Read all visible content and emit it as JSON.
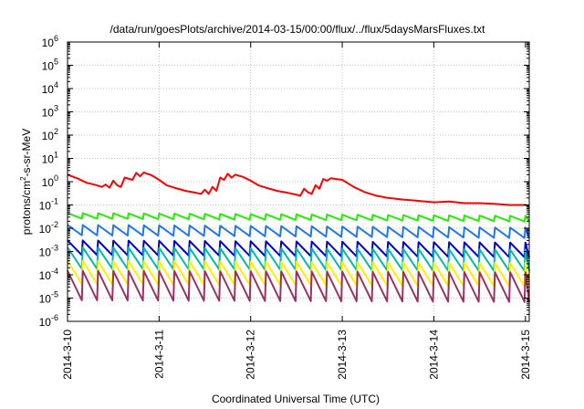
{
  "chart_data": {
    "type": "line",
    "title": "/data/run/goesPlots/archive/2014-03-15/00:00/flux/../flux/5daysMarsFluxes.txt",
    "xlabel": "Coordinated Universal Time (UTC)",
    "ylabel": {
      "prefix": "protons/cm",
      "sup": "2",
      "suffix": "-s-sr-MeV"
    },
    "x_ticks": [
      "2014-3-10",
      "2014-3-11",
      "2014-3-12",
      "2014-3-13",
      "2014-3-14",
      "2014-3-15"
    ],
    "xlim": [
      "2014-03-10 00:00",
      "2014-03-15 01:00"
    ],
    "yscale": "log",
    "ylim": [
      1e-06,
      1000000.0
    ],
    "y_ticks": [
      {
        "base": "10",
        "exp": "-6"
      },
      {
        "base": "10",
        "exp": "-5"
      },
      {
        "base": "10",
        "exp": "-4"
      },
      {
        "base": "10",
        "exp": "-3"
      },
      {
        "base": "10",
        "exp": "-2"
      },
      {
        "base": "10",
        "exp": "-1"
      },
      {
        "base": "10",
        "exp": "0"
      },
      {
        "base": "10",
        "exp": "1"
      },
      {
        "base": "10",
        "exp": "2"
      },
      {
        "base": "10",
        "exp": "3"
      },
      {
        "base": "10",
        "exp": "4"
      },
      {
        "base": "10",
        "exp": "5"
      },
      {
        "base": "10",
        "exp": "6"
      }
    ],
    "grid": true,
    "series": [
      {
        "color": "#ff0000",
        "points": [
          [
            "2014-03-10 00:00",
            2.0
          ],
          [
            "2014-03-10 03:00",
            1.3
          ],
          [
            "2014-03-10 05:00",
            0.9
          ],
          [
            "2014-03-10 07:00",
            0.75
          ],
          [
            "2014-03-10 09:00",
            0.6
          ],
          [
            "2014-03-10 10:00",
            0.75
          ],
          [
            "2014-03-10 11:00",
            0.55
          ],
          [
            "2014-03-10 12:00",
            1.1
          ],
          [
            "2014-03-10 13:00",
            0.7
          ],
          [
            "2014-03-10 14:00",
            0.6
          ],
          [
            "2014-03-10 15:00",
            1.5
          ],
          [
            "2014-03-10 17:00",
            1.2
          ],
          [
            "2014-03-10 18:00",
            2.4
          ],
          [
            "2014-03-10 19:00",
            1.7
          ],
          [
            "2014-03-10 20:00",
            2.5
          ],
          [
            "2014-03-10 22:00",
            1.9
          ],
          [
            "2014-03-11 00:00",
            1.2
          ],
          [
            "2014-03-11 02:00",
            0.7
          ],
          [
            "2014-03-11 04:00",
            0.55
          ],
          [
            "2014-03-11 07:00",
            0.4
          ],
          [
            "2014-03-11 09:00",
            0.35
          ],
          [
            "2014-03-11 11:00",
            0.3
          ],
          [
            "2014-03-11 12:00",
            0.45
          ],
          [
            "2014-03-11 13:00",
            0.3
          ],
          [
            "2014-03-11 14:00",
            0.6
          ],
          [
            "2014-03-11 15:00",
            0.4
          ],
          [
            "2014-03-11 16:00",
            1.5
          ],
          [
            "2014-03-11 17:00",
            1.2
          ],
          [
            "2014-03-11 18:00",
            2.2
          ],
          [
            "2014-03-11 19:00",
            1.5
          ],
          [
            "2014-03-11 20:00",
            2.0
          ],
          [
            "2014-03-11 22:00",
            1.6
          ],
          [
            "2014-03-12 00:00",
            1.1
          ],
          [
            "2014-03-12 02:00",
            0.7
          ],
          [
            "2014-03-12 04:00",
            0.55
          ],
          [
            "2014-03-12 07:00",
            0.4
          ],
          [
            "2014-03-12 09:00",
            0.35
          ],
          [
            "2014-03-12 11:00",
            0.3
          ],
          [
            "2014-03-12 13:00",
            0.25
          ],
          [
            "2014-03-12 14:00",
            0.5
          ],
          [
            "2014-03-12 15:00",
            0.35
          ],
          [
            "2014-03-12 16:00",
            0.3
          ],
          [
            "2014-03-12 17:00",
            0.7
          ],
          [
            "2014-03-12 18:00",
            0.5
          ],
          [
            "2014-03-12 19:00",
            1.3
          ],
          [
            "2014-03-12 20:00",
            1.1
          ],
          [
            "2014-03-12 21:00",
            1.4
          ],
          [
            "2014-03-13 00:00",
            1.2
          ],
          [
            "2014-03-13 03:00",
            0.6
          ],
          [
            "2014-03-13 06:00",
            0.35
          ],
          [
            "2014-03-13 09:00",
            0.25
          ],
          [
            "2014-03-13 12:00",
            0.2
          ],
          [
            "2014-03-13 16:00",
            0.17
          ],
          [
            "2014-03-13 20:00",
            0.15
          ],
          [
            "2014-03-14 00:00",
            0.13
          ],
          [
            "2014-03-14 04:00",
            0.14
          ],
          [
            "2014-03-14 08:00",
            0.12
          ],
          [
            "2014-03-14 12:00",
            0.12
          ],
          [
            "2014-03-14 16:00",
            0.11
          ],
          [
            "2014-03-14 20:00",
            0.1
          ],
          [
            "2014-03-15 00:00",
            0.1
          ],
          [
            "2014-03-15 01:00",
            0.09
          ]
        ]
      },
      {
        "color": "#22ee00",
        "hi": 0.045,
        "lo": 0.026,
        "trend_end": 0.75
      },
      {
        "color": "#2277ee",
        "hi": 0.014,
        "lo": 0.005,
        "trend_end": 0.75
      },
      {
        "color": "#0000cc",
        "hi": 0.003,
        "lo": 0.0007,
        "trend_end": 0.8
      },
      {
        "color": "#00bbaa",
        "hi": 0.0015,
        "lo": 0.00018,
        "trend_end": 0.8
      },
      {
        "color": "#ffee00",
        "hi": 0.0004,
        "lo": 4e-05,
        "trend_end": 0.8
      },
      {
        "color": "#993366",
        "hi": 0.00015,
        "lo": 8e-06,
        "trend_end": 0.85
      }
    ]
  }
}
